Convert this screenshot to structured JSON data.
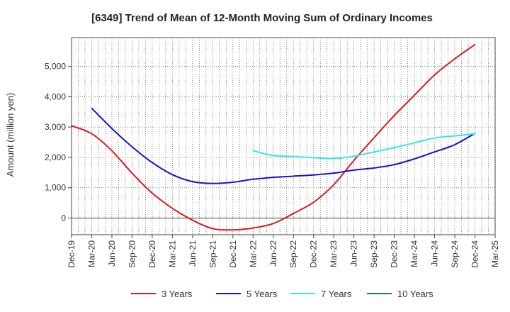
{
  "chart_data": {
    "type": "line",
    "title": "[6349]  Trend of Mean of 12-Month Moving Sum of Ordinary Incomes",
    "xlabel": "",
    "ylabel": "Amount (million yen)",
    "ylim": [
      -550,
      5950
    ],
    "yticks": [
      0,
      1000,
      2000,
      3000,
      4000,
      5000
    ],
    "ytick_labels": [
      "0",
      "1,000",
      "2,000",
      "3,000",
      "4,000",
      "5,000"
    ],
    "categories": [
      "Dec-19",
      "Mar-20",
      "Jun-20",
      "Sep-20",
      "Dec-20",
      "Mar-21",
      "Jun-21",
      "Sep-21",
      "Dec-21",
      "Mar-22",
      "Jun-22",
      "Sep-22",
      "Dec-22",
      "Mar-23",
      "Jun-23",
      "Sep-23",
      "Dec-23",
      "Mar-24",
      "Jun-24",
      "Sep-24",
      "Dec-24",
      "Mar-25"
    ],
    "grid": true,
    "legend_position": "bottom",
    "series": [
      {
        "name": "3 Years",
        "color": "#dd1a1a",
        "values": [
          3040,
          2780,
          2220,
          1480,
          820,
          320,
          -70,
          -350,
          -390,
          -330,
          -180,
          150,
          520,
          1100,
          1900,
          2650,
          3380,
          4050,
          4720,
          5250,
          5720,
          null
        ]
      },
      {
        "name": "5 Years",
        "color": "#1414c8",
        "values": [
          null,
          3620,
          2950,
          2350,
          1830,
          1430,
          1200,
          1140,
          1180,
          1280,
          1340,
          1380,
          1420,
          1480,
          1580,
          1650,
          1760,
          1950,
          2180,
          2420,
          2790,
          null
        ]
      },
      {
        "name": "7 Years",
        "color": "#33e8ee",
        "values": [
          null,
          null,
          null,
          null,
          null,
          null,
          null,
          null,
          null,
          2220,
          2060,
          2030,
          1990,
          1960,
          2040,
          2180,
          2320,
          2480,
          2640,
          2710,
          2780,
          null
        ]
      },
      {
        "name": "10 Years",
        "color": "#1e8a1e",
        "values": [
          null,
          null,
          null,
          null,
          null,
          null,
          null,
          null,
          null,
          null,
          null,
          null,
          null,
          null,
          null,
          null,
          null,
          null,
          null,
          null,
          null,
          null
        ]
      }
    ]
  }
}
